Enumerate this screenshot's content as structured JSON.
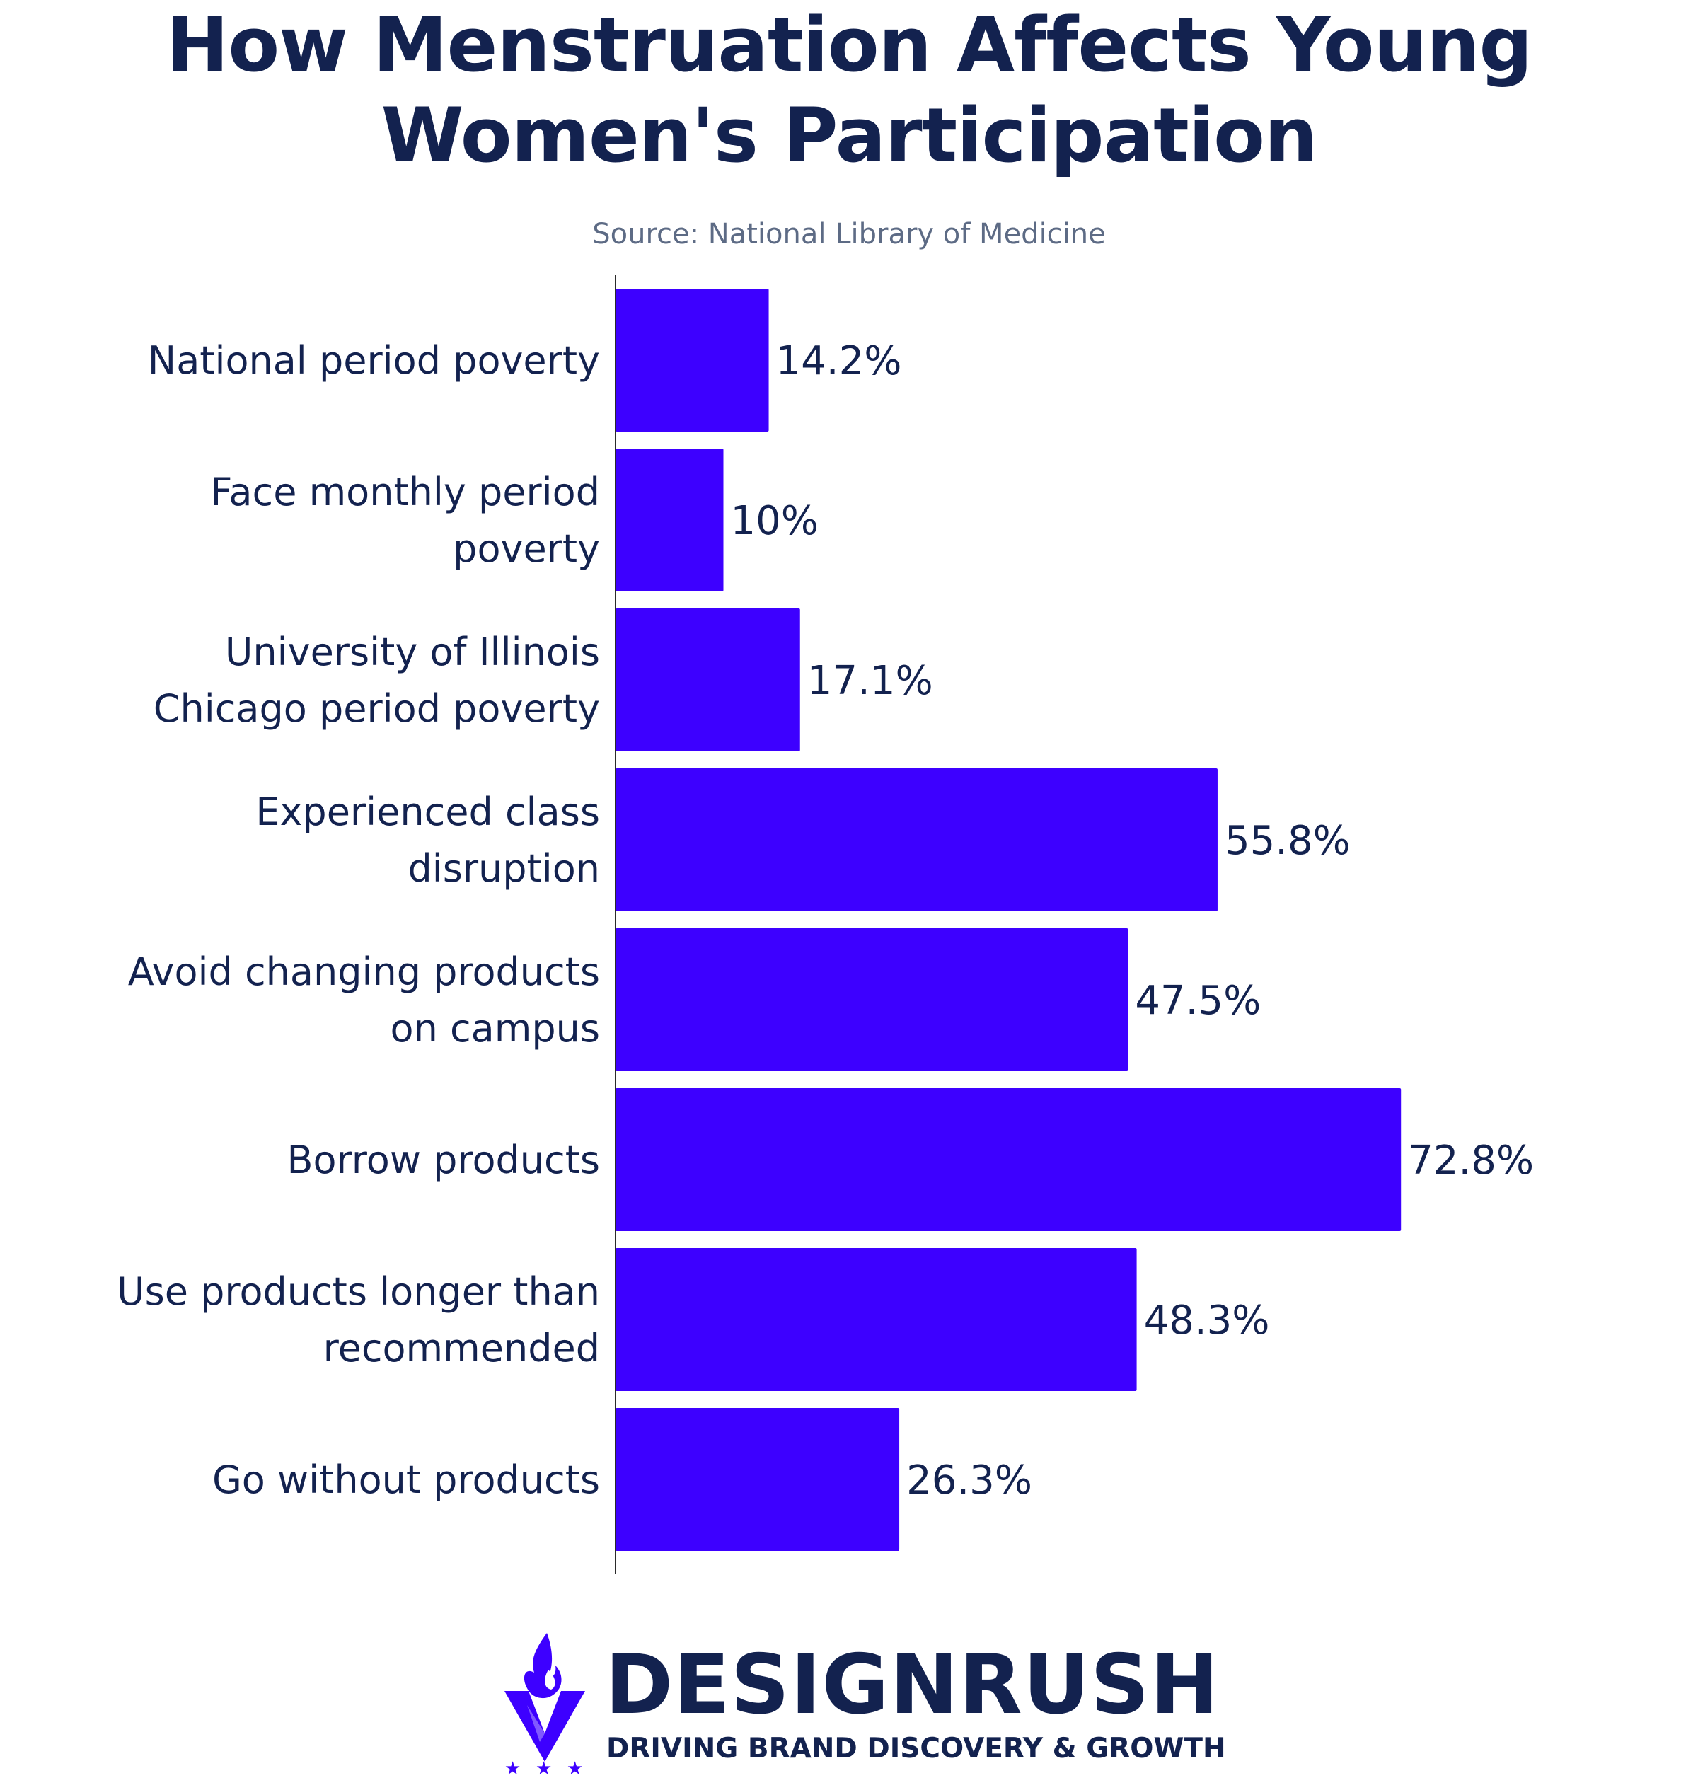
{
  "header": {
    "title_line1": "How Menstruation Affects Young",
    "title_line2": "Women's Participation",
    "source": "Source: National Library of Medicine"
  },
  "chart_data": {
    "type": "bar",
    "orientation": "horizontal",
    "title": "How Menstruation Affects Young Women's Participation",
    "subtitle": "Source: National Library of Medicine",
    "categories": [
      [
        "National period poverty"
      ],
      [
        "Face monthly period",
        "poverty"
      ],
      [
        "University of Illinois",
        "Chicago period poverty"
      ],
      [
        "Experienced class",
        "disruption"
      ],
      [
        "Avoid changing products",
        "on campus"
      ],
      [
        "Borrow products"
      ],
      [
        "Use products longer than",
        "recommended"
      ],
      [
        "Go without products"
      ]
    ],
    "values": [
      14.2,
      10,
      17.1,
      55.8,
      47.5,
      72.8,
      48.3,
      26.3
    ],
    "value_labels": [
      "14.2%",
      "10%",
      "17.1%",
      "55.8%",
      "47.5%",
      "72.8%",
      "48.3%",
      "26.3%"
    ],
    "unit": "%",
    "xlim": [
      0,
      100
    ],
    "grid": false,
    "legend": "none",
    "bar_color": "#3d00ff"
  },
  "logo": {
    "brand": "DESIGNRUSH",
    "tagline": "DRIVING BRAND DISCOVERY & GROWTH",
    "icon": "flame-shield-icon",
    "colors": {
      "primary": "#3d00ff",
      "text": "#13224f"
    }
  }
}
